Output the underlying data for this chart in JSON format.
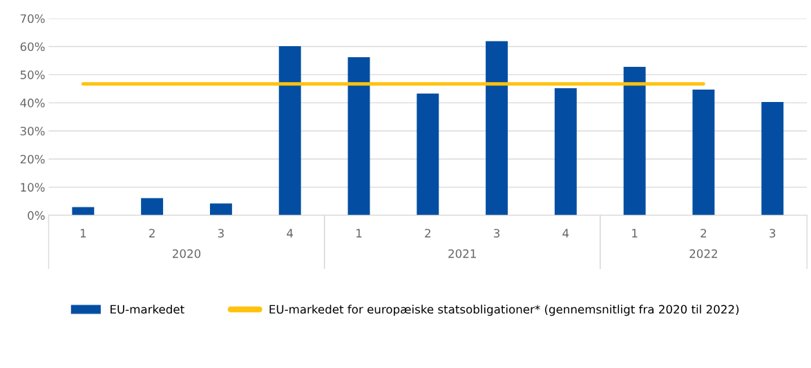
{
  "chart_data": {
    "type": "bar",
    "categories": [
      "1",
      "2",
      "3",
      "4",
      "1",
      "2",
      "3",
      "4",
      "1",
      "2",
      "3"
    ],
    "series": [
      {
        "name": "EU-markedet",
        "color": "#034ea2",
        "values": [
          2.9,
          6.1,
          4.2,
          60.1,
          56.2,
          43.3,
          61.9,
          45.2,
          52.8,
          44.7,
          40.3
        ]
      },
      {
        "name": "EU-markedet for europæiske statsobligationer* (gennemsnitligt fra 2020 til 2022)",
        "type": "line",
        "color": "#ffc20e",
        "values": [
          46.7,
          46.7,
          46.7,
          46.7,
          46.7,
          46.7,
          46.7,
          46.7,
          46.7,
          46.7,
          null
        ]
      }
    ],
    "annotations": [
      "2020",
      "2021",
      "2022"
    ],
    "ylim": [
      0,
      70
    ],
    "yticks": [
      {
        "value": 0,
        "label": "0%"
      },
      {
        "value": 10,
        "label": "10%"
      },
      {
        "value": 20,
        "label": "20%"
      },
      {
        "value": 30,
        "label": "30%"
      },
      {
        "value": 40,
        "label": "40%"
      },
      {
        "value": 50,
        "label": "50%"
      },
      {
        "value": 60,
        "label": "60%"
      },
      {
        "value": 70,
        "label": "70%"
      }
    ],
    "grid": "y",
    "legend": "bottom"
  }
}
